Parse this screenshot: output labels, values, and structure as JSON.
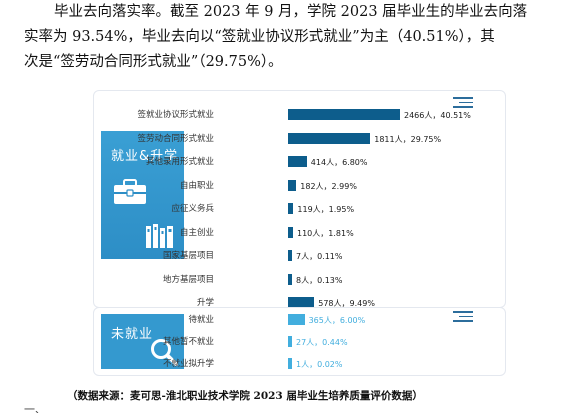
{
  "paragraph": {
    "line1": "毕业去向落实率。截至 2023 年 9 月，学院 2023 届毕业生的毕业去向落",
    "line2": "实率为 93.54%，毕业去向以“签就业协议形式就业”为主（40.51%），其",
    "line3": "次是“签劳动合同形式就业”（29.75%）。"
  },
  "employed_panel": {
    "title": "就业&升学",
    "icons": [
      "briefcase-icon",
      "books-icon"
    ]
  },
  "unemployed_panel": {
    "title": "未就业",
    "icons": [
      "magnifier-icon"
    ]
  },
  "chart_data": {
    "type": "bar",
    "orientation": "horizontal",
    "unit": "人",
    "groups": [
      {
        "name": "就业&升学",
        "color": "#0d5d8c",
        "categories": [
          "签就业协议形式就业",
          "签劳动合同形式就业",
          "其他录用形式就业",
          "自由职业",
          "应征义务兵",
          "自主创业",
          "国家基层项目",
          "地方基层项目",
          "升学"
        ],
        "counts": [
          2466,
          1811,
          414,
          182,
          119,
          110,
          7,
          8,
          578
        ],
        "labels": [
          "2466人，40.51%",
          "1811人，29.75%",
          "414人，6.80%",
          "182人，2.99%",
          "119人，1.95%",
          "110人，1.81%",
          "7人，0.11%",
          "8人，0.13%",
          "578人，9.49%"
        ]
      },
      {
        "name": "未就业",
        "color": "#42aede",
        "categories": [
          "待就业",
          "其他暂不就业",
          "不就业拟升学"
        ],
        "counts": [
          365,
          27,
          1
        ],
        "labels": [
          "365人，6.00%",
          "27人，0.44%",
          "1人，0.02%"
        ]
      }
    ]
  },
  "source_note": "（数据来源：麦可思-淮北职业技术学院 2023 届毕业生培养质量评价数据）",
  "cut_line": "一、"
}
